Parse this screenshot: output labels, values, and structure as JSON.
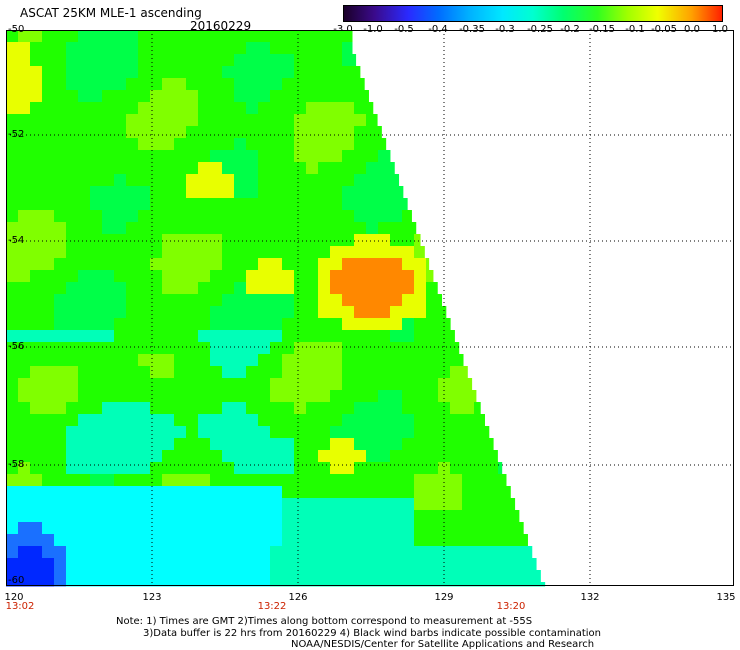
{
  "header": {
    "title": "ASCAT 25KM MLE-1 ascending",
    "date": "20160229"
  },
  "colorbar": {
    "labels": [
      "-3.0",
      "-1.0",
      "-0.5",
      "-0.4",
      "-0.35",
      "-0.3",
      "-0.25",
      "-0.2",
      "-0.15",
      "-0.1",
      "-0.05",
      "0.0",
      "1.0"
    ],
    "colors": [
      "#1a0028",
      "#3a0a8a",
      "#2a2aff",
      "#006cff",
      "#00b0ff",
      "#00e8ff",
      "#00ffd0",
      "#00ff70",
      "#30ff20",
      "#a0ff00",
      "#f0ff00",
      "#ffa000",
      "#ff2000"
    ]
  },
  "map": {
    "x_ticks": [
      "120",
      "123",
      "126",
      "129",
      "132",
      "135"
    ],
    "y_ticks": [
      "-50",
      "-52",
      "-54",
      "-56",
      "-58",
      "-60"
    ],
    "time_labels": [
      "13:02",
      "13:22",
      "13:20"
    ],
    "palette": {
      "deep_blue": "#0028ff",
      "blue": "#1a70ff",
      "cyan": "#00ffff",
      "aqua": "#00ffb8",
      "green": "#00ff48",
      "bright_green": "#20ff00",
      "lime": "#80ff00",
      "yellow": "#e8ff00",
      "orange": "#ff8800"
    }
  },
  "notes": {
    "line1": "Note: 1) Times are GMT 2)Times along bottom correspond to measurement at -55S",
    "line2": "3)Data buffer is 22 hrs from 20160229 4) Black wind barbs indicate possible contamination",
    "line3": "NOAA/NESDIS/Center for Satellite Applications and Research"
  }
}
